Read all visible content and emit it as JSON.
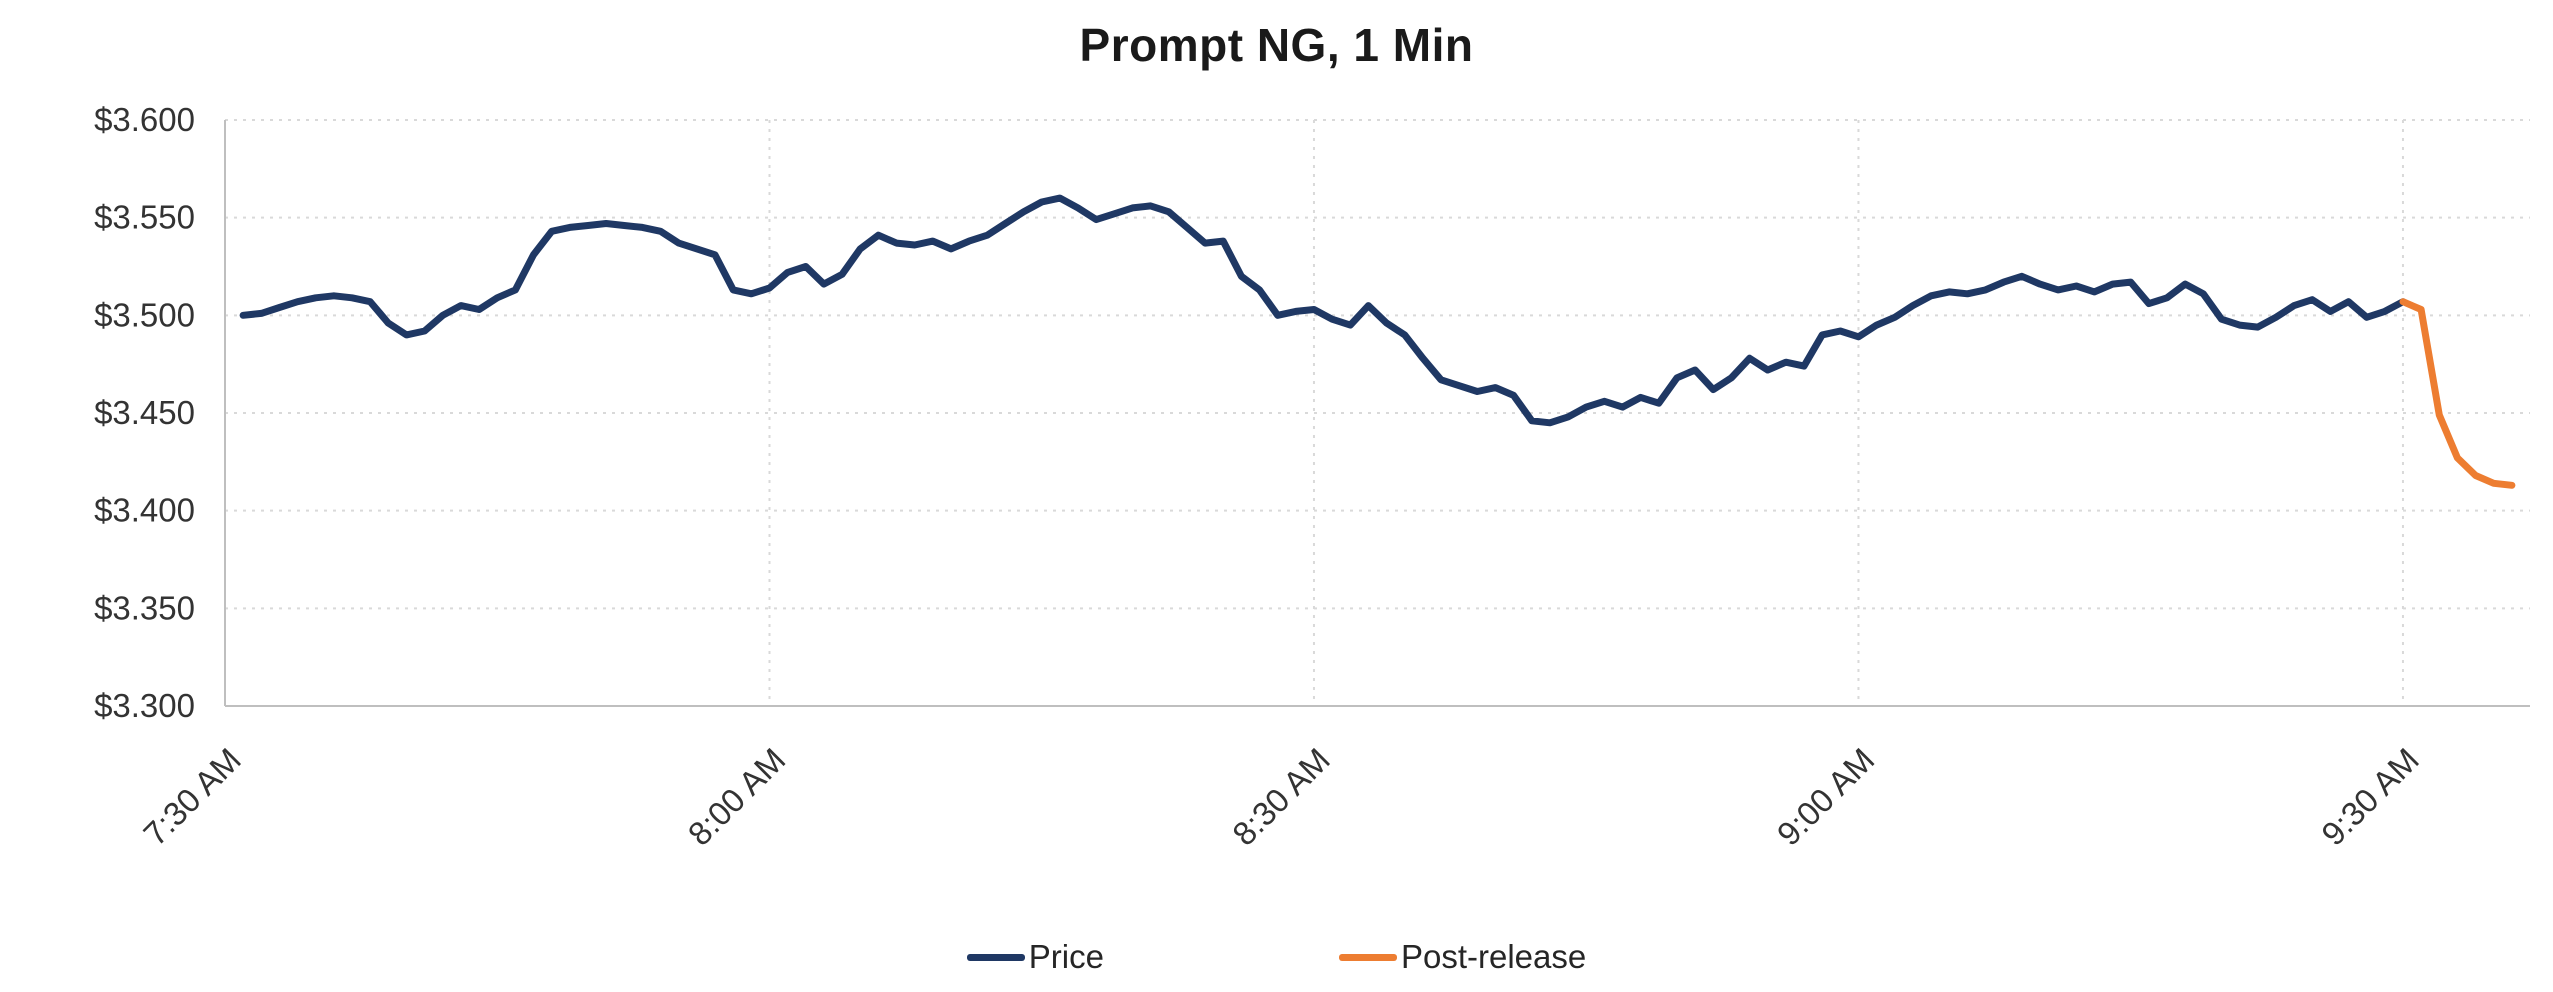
{
  "chart_data": {
    "type": "line",
    "title": "Prompt NG, 1 Min",
    "xlabel": "",
    "ylabel": "",
    "x_unit": "minutes after 7:30 AM, 1-minute bars",
    "xlim": [
      0,
      127
    ],
    "ylim": [
      3.3,
      3.6
    ],
    "grid": "horizontal and vertical dashed gridlines at major ticks",
    "legend_position": "bottom-center",
    "x_axis_label_rotation": -45,
    "colors": {
      "price": "#1f3864",
      "post_release": "#ED7D31",
      "gridline": "#d9d9d9",
      "axis": "#bfbfbf",
      "tick_text": "#333333",
      "title_text": "#1a1a1a"
    },
    "y_ticks": [
      {
        "v": 3.3,
        "label": "$3.300"
      },
      {
        "v": 3.35,
        "label": "$3.350"
      },
      {
        "v": 3.4,
        "label": "$3.400"
      },
      {
        "v": 3.45,
        "label": "$3.450"
      },
      {
        "v": 3.5,
        "label": "$3.500"
      },
      {
        "v": 3.55,
        "label": "$3.550"
      },
      {
        "v": 3.6,
        "label": "$3.600"
      }
    ],
    "x_ticks": [
      {
        "t": 0,
        "label": "7:30 AM"
      },
      {
        "t": 30,
        "label": "8:00 AM"
      },
      {
        "t": 60,
        "label": "8:30 AM"
      },
      {
        "t": 90,
        "label": "9:00 AM"
      },
      {
        "t": 120,
        "label": "9:30 AM"
      }
    ],
    "series": [
      {
        "name": "Price",
        "color": "#1f3864",
        "x_start": 1,
        "x_step": 1,
        "y": [
          3.5,
          3.501,
          3.504,
          3.507,
          3.509,
          3.51,
          3.509,
          3.507,
          3.496,
          3.49,
          3.492,
          3.5,
          3.505,
          3.503,
          3.509,
          3.513,
          3.531,
          3.543,
          3.545,
          3.546,
          3.547,
          3.546,
          3.545,
          3.543,
          3.537,
          3.534,
          3.531,
          3.513,
          3.511,
          3.514,
          3.522,
          3.525,
          3.516,
          3.521,
          3.534,
          3.541,
          3.537,
          3.536,
          3.538,
          3.534,
          3.538,
          3.541,
          3.547,
          3.553,
          3.558,
          3.56,
          3.555,
          3.549,
          3.552,
          3.555,
          3.556,
          3.553,
          3.545,
          3.537,
          3.538,
          3.52,
          3.513,
          3.5,
          3.502,
          3.503,
          3.498,
          3.495,
          3.505,
          3.496,
          3.49,
          3.478,
          3.467,
          3.464,
          3.461,
          3.463,
          3.459,
          3.446,
          3.445,
          3.448,
          3.453,
          3.456,
          3.453,
          3.458,
          3.455,
          3.468,
          3.472,
          3.462,
          3.468,
          3.478,
          3.472,
          3.476,
          3.474,
          3.49,
          3.492,
          3.489,
          3.495,
          3.499,
          3.505,
          3.51,
          3.512,
          3.511,
          3.513,
          3.517,
          3.52,
          3.516,
          3.513,
          3.515,
          3.512,
          3.516,
          3.517,
          3.506,
          3.509,
          3.516,
          3.511,
          3.498,
          3.495,
          3.494,
          3.499,
          3.505,
          3.508,
          3.502,
          3.507,
          3.499,
          3.502,
          3.507
        ]
      },
      {
        "name": "Post-release",
        "color": "#ED7D31",
        "x": [
          120,
          121,
          122,
          123,
          124,
          125,
          126
        ],
        "y": [
          3.507,
          3.503,
          3.449,
          3.427,
          3.418,
          3.414,
          3.413
        ]
      }
    ]
  }
}
